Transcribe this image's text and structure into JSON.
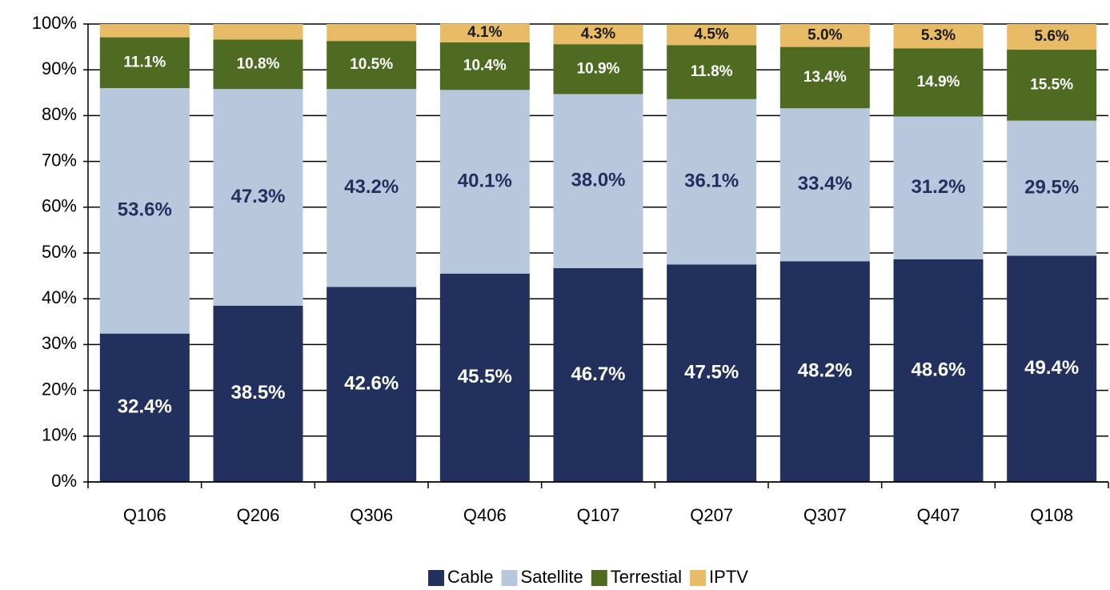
{
  "chart_data": {
    "type": "stacked_bar",
    "categories": [
      "Q106",
      "Q206",
      "Q306",
      "Q406",
      "Q107",
      "Q207",
      "Q307",
      "Q407",
      "Q108"
    ],
    "series": [
      {
        "name": "Cable",
        "color": "#22305e",
        "label_color": "#ffffff",
        "values": [
          32.4,
          38.5,
          42.6,
          45.5,
          46.7,
          47.5,
          48.2,
          48.6,
          49.4
        ],
        "value_labels": [
          "32.4%",
          "38.5%",
          "42.6%",
          "45.5%",
          "46.7%",
          "47.5%",
          "48.2%",
          "48.6%",
          "49.4%"
        ]
      },
      {
        "name": "Satellite",
        "color": "#b8c8dc",
        "label_color": "#22305e",
        "values": [
          53.6,
          47.3,
          43.2,
          40.1,
          38.0,
          36.1,
          33.4,
          31.2,
          29.5
        ],
        "value_labels": [
          "53.6%",
          "47.3%",
          "43.2%",
          "40.1%",
          "38.0%",
          "36.1%",
          "33.4%",
          "31.2%",
          "29.5%"
        ]
      },
      {
        "name": "Terrestial",
        "color": "#4f6b22",
        "label_color": "#ffffff",
        "values": [
          11.1,
          10.8,
          10.5,
          10.4,
          10.9,
          11.8,
          13.4,
          14.9,
          15.5
        ],
        "value_labels": [
          "11.1%",
          "10.8%",
          "10.5%",
          "10.4%",
          "10.9%",
          "11.8%",
          "13.4%",
          "14.9%",
          "15.5%"
        ]
      },
      {
        "name": "IPTV",
        "color": "#e8bc66",
        "label_color": "#1a1a1a",
        "values": [
          2.9,
          3.4,
          3.7,
          4.1,
          4.3,
          4.5,
          5.0,
          5.3,
          5.6
        ],
        "value_labels": [
          null,
          null,
          null,
          "4.1%",
          "4.3%",
          "4.5%",
          "5.0%",
          "5.3%",
          "5.6%"
        ]
      }
    ],
    "ylim": [
      0,
      100
    ],
    "yticks": [
      {
        "value": 0,
        "label": "0%"
      },
      {
        "value": 10,
        "label": "10%"
      },
      {
        "value": 20,
        "label": "20%"
      },
      {
        "value": 30,
        "label": "30%"
      },
      {
        "value": 40,
        "label": "40%"
      },
      {
        "value": 50,
        "label": "50%"
      },
      {
        "value": 60,
        "label": "60%"
      },
      {
        "value": 70,
        "label": "70%"
      },
      {
        "value": 80,
        "label": "80%"
      },
      {
        "value": 90,
        "label": "90%"
      },
      {
        "value": 100,
        "label": "100%"
      }
    ],
    "grid": true,
    "legend": "bottom"
  }
}
